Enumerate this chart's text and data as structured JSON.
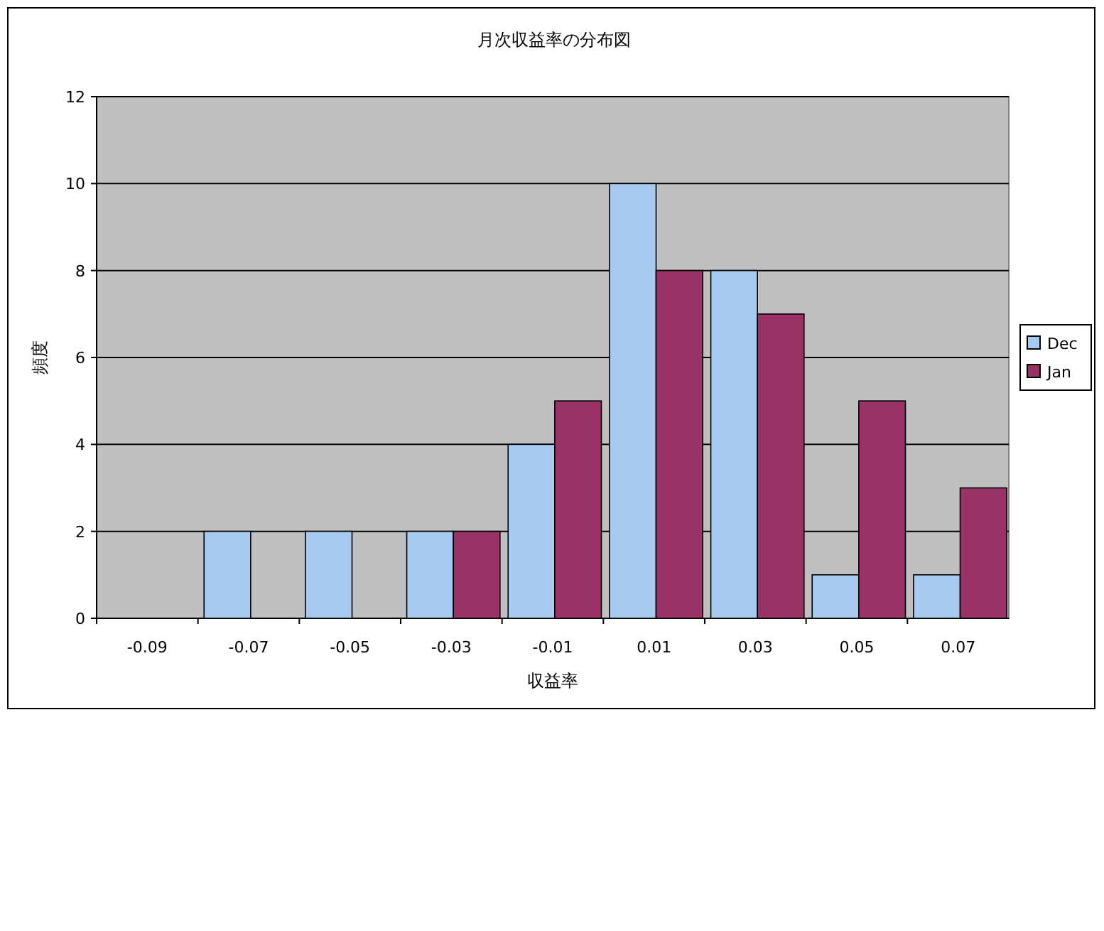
{
  "chart_data": {
    "type": "bar",
    "title": "月次収益率の分布図",
    "xlabel": "収益率",
    "ylabel": "頻度",
    "categories": [
      "-0.09",
      "-0.07",
      "-0.05",
      "-0.03",
      "-0.01",
      "0.01",
      "0.03",
      "0.05",
      "0.07"
    ],
    "series": [
      {
        "name": "Dec",
        "color": "#a6caf0",
        "values": [
          0,
          2,
          2,
          2,
          4,
          10,
          8,
          1,
          1
        ]
      },
      {
        "name": "Jan",
        "color": "#993366",
        "values": [
          0,
          0,
          0,
          2,
          5,
          8,
          7,
          5,
          3
        ]
      }
    ],
    "ylim": [
      0,
      12
    ],
    "yticks": [
      0,
      2,
      4,
      6,
      8,
      10,
      12
    ],
    "grid": "y",
    "legend": "right"
  }
}
